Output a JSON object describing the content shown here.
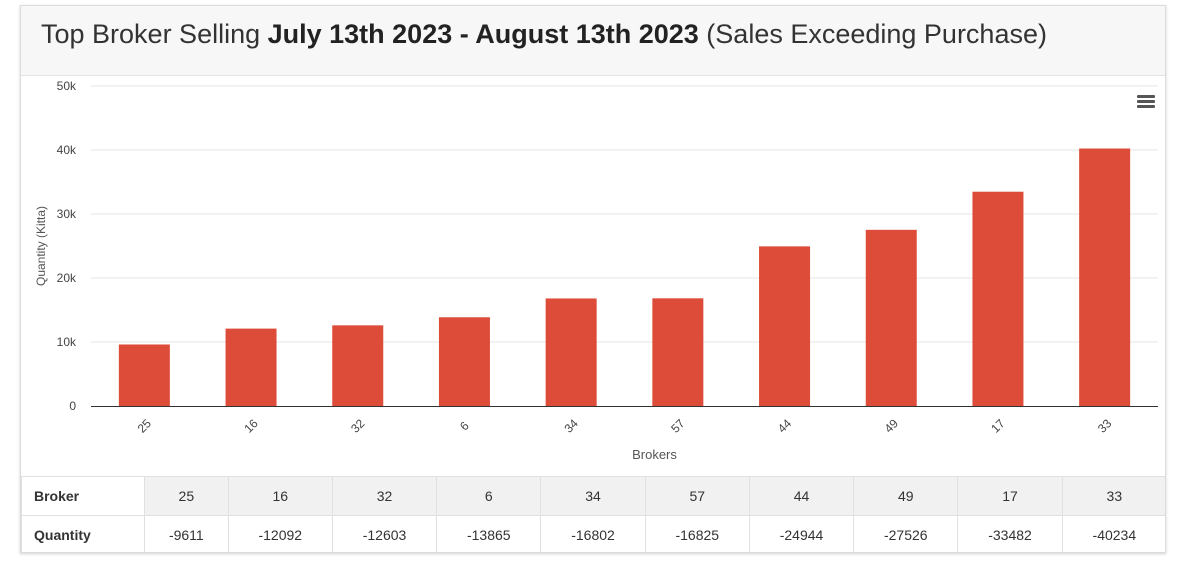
{
  "title": {
    "prefix": "Top Broker Selling ",
    "bold": "July 13th 2023 - August 13th 2023",
    "suffix": " (Sales Exceeding Purchase)"
  },
  "menu_icon": "hamburger-menu-icon",
  "colors": {
    "bar": "#dd4b39",
    "grid": "#e6e6e6",
    "axis": "#333333"
  },
  "chart_data": {
    "type": "bar",
    "categories": [
      "25",
      "16",
      "32",
      "6",
      "34",
      "57",
      "44",
      "49",
      "17",
      "33"
    ],
    "values": [
      9611,
      12092,
      12603,
      13865,
      16802,
      16825,
      24944,
      27526,
      33482,
      40234
    ],
    "xlabel": "Brokers",
    "ylabel": "Quantity (Kitta)",
    "ylim": [
      0,
      50000
    ],
    "yticks": [
      0,
      10000,
      20000,
      30000,
      40000,
      50000
    ],
    "ytick_labels": [
      "0",
      "10k",
      "20k",
      "30k",
      "40k",
      "50k"
    ],
    "grid": true
  },
  "table": {
    "row_labels": [
      "Broker",
      "Quantity"
    ],
    "brokers": [
      "25",
      "16",
      "32",
      "6",
      "34",
      "57",
      "44",
      "49",
      "17",
      "33"
    ],
    "quantities": [
      "-9611",
      "-12092",
      "-12603",
      "-13865",
      "-16802",
      "-16825",
      "-24944",
      "-27526",
      "-33482",
      "-40234"
    ]
  }
}
